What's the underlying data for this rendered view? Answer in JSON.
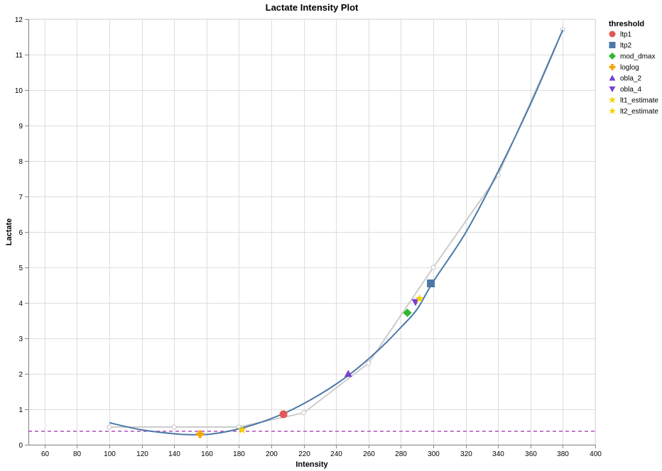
{
  "chart_data": {
    "type": "scatter",
    "title": "Lactate Intensity Plot",
    "xlabel": "Intensity",
    "ylabel": "Lactate",
    "xlim": [
      50,
      400
    ],
    "ylim": [
      0,
      12
    ],
    "x_ticks": [
      60,
      80,
      100,
      120,
      140,
      160,
      180,
      200,
      220,
      240,
      260,
      280,
      300,
      320,
      340,
      360,
      380,
      400
    ],
    "y_ticks": [
      0,
      1,
      2,
      3,
      4,
      5,
      6,
      7,
      8,
      9,
      10,
      11,
      12
    ],
    "grid": true,
    "legend": {
      "title": "threshold",
      "position": "top-right"
    },
    "raw_data": {
      "color": "#cccccc",
      "points": [
        {
          "x": 100,
          "y": 0.5
        },
        {
          "x": 140,
          "y": 0.5
        },
        {
          "x": 180,
          "y": 0.5
        },
        {
          "x": 220,
          "y": 0.9
        },
        {
          "x": 260,
          "y": 2.3
        },
        {
          "x": 300,
          "y": 5.0
        },
        {
          "x": 340,
          "y": 7.6
        },
        {
          "x": 380,
          "y": 11.7
        }
      ]
    },
    "fit_curve": {
      "color": "#4c78a8",
      "points": [
        {
          "x": 100,
          "y": 0.62
        },
        {
          "x": 120,
          "y": 0.42
        },
        {
          "x": 140,
          "y": 0.31
        },
        {
          "x": 150,
          "y": 0.285
        },
        {
          "x": 160,
          "y": 0.29
        },
        {
          "x": 170,
          "y": 0.35
        },
        {
          "x": 180,
          "y": 0.45
        },
        {
          "x": 190,
          "y": 0.58
        },
        {
          "x": 200,
          "y": 0.74
        },
        {
          "x": 210,
          "y": 0.93
        },
        {
          "x": 220,
          "y": 1.16
        },
        {
          "x": 230,
          "y": 1.42
        },
        {
          "x": 240,
          "y": 1.71
        },
        {
          "x": 250,
          "y": 2.04
        },
        {
          "x": 260,
          "y": 2.42
        },
        {
          "x": 270,
          "y": 2.84
        },
        {
          "x": 280,
          "y": 3.31
        },
        {
          "x": 290,
          "y": 3.82
        },
        {
          "x": 300,
          "y": 4.6
        },
        {
          "x": 320,
          "y": 5.98
        },
        {
          "x": 340,
          "y": 7.7
        },
        {
          "x": 360,
          "y": 9.6
        },
        {
          "x": 380,
          "y": 11.7
        }
      ]
    },
    "baseline": {
      "y": 0.38,
      "color": "#b04fbb"
    },
    "thresholds": [
      {
        "name": "ltp1",
        "x": 207.5,
        "y": 0.86,
        "shape": "circle",
        "color": "#e45756"
      },
      {
        "name": "ltp2",
        "x": 298.5,
        "y": 4.55,
        "shape": "square",
        "color": "#4c78a8"
      },
      {
        "name": "mod_dmax",
        "x": 284,
        "y": 3.72,
        "shape": "diamond",
        "color": "#2eb82e"
      },
      {
        "name": "loglog",
        "x": 156,
        "y": 0.3,
        "shape": "cross",
        "color": "#f2a60c"
      },
      {
        "name": "obla_2",
        "x": 247.5,
        "y": 2.0,
        "shape": "triangle-up",
        "color": "#7a3fd0"
      },
      {
        "name": "obla_4",
        "x": 289,
        "y": 4.02,
        "shape": "triangle-down",
        "color": "#7a3fd0"
      },
      {
        "name": "lt1_estimate",
        "x": 182,
        "y": 0.42,
        "shape": "star",
        "color": "#f5d000"
      },
      {
        "name": "lt2_estimate",
        "x": 291.5,
        "y": 4.12,
        "shape": "star",
        "color": "#f5d000"
      }
    ]
  }
}
